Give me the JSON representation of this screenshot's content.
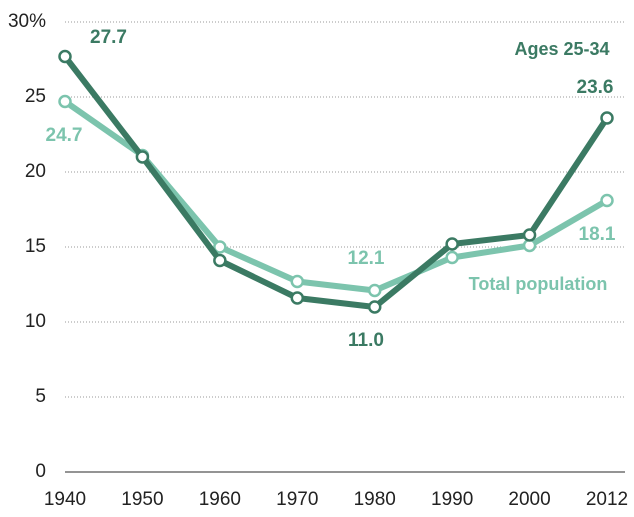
{
  "chart_data": {
    "type": "line",
    "categories": [
      "1940",
      "1950",
      "1960",
      "1970",
      "1980",
      "1990",
      "2000",
      "2012"
    ],
    "series": [
      {
        "name": "Ages 25-34",
        "color": "#3b7a63",
        "values": [
          27.7,
          21.0,
          14.1,
          11.6,
          11.0,
          15.2,
          15.8,
          23.6
        ],
        "value_labels": [
          "27.7",
          null,
          null,
          null,
          "11.0",
          null,
          null,
          "23.6"
        ]
      },
      {
        "name": "Total population",
        "color": "#7cc4ad",
        "values": [
          24.7,
          21.1,
          15.0,
          12.7,
          12.1,
          14.3,
          15.1,
          18.1
        ],
        "value_labels": [
          "24.7",
          null,
          null,
          null,
          "12.1",
          null,
          null,
          "18.1"
        ]
      }
    ],
    "ylim": [
      0,
      30
    ],
    "yticks": [
      0,
      5,
      10,
      15,
      20,
      25,
      {
        "value": 30,
        "label": "30%"
      }
    ],
    "grid": true
  }
}
